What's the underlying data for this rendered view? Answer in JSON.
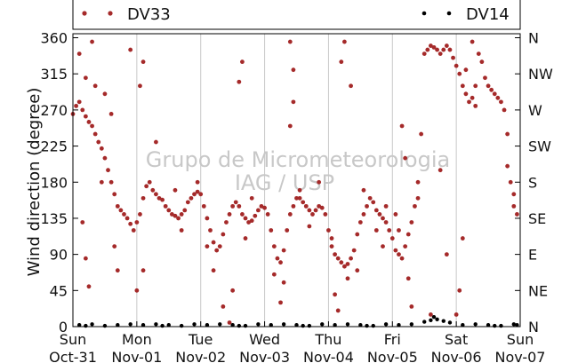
{
  "chart_data": {
    "type": "scatter",
    "ylabel": "Wind direction (degree)",
    "ylim": [
      0,
      365
    ],
    "yticks": [
      0,
      45,
      90,
      135,
      180,
      225,
      270,
      315,
      360
    ],
    "right_ticks": [
      {
        "value": 0,
        "label": "N"
      },
      {
        "value": 45,
        "label": "NE"
      },
      {
        "value": 90,
        "label": "E"
      },
      {
        "value": 135,
        "label": "SE"
      },
      {
        "value": 180,
        "label": "S"
      },
      {
        "value": 225,
        "label": "SW"
      },
      {
        "value": 270,
        "label": "W"
      },
      {
        "value": 315,
        "label": "NW"
      },
      {
        "value": 360,
        "label": "N"
      }
    ],
    "xlim": [
      0,
      7
    ],
    "xticks": [
      {
        "day": "Sun",
        "date": "Oct-31"
      },
      {
        "day": "Mon",
        "date": "Nov-01"
      },
      {
        "day": "Tue",
        "date": "Nov-02"
      },
      {
        "day": "Wed",
        "date": "Nov-03"
      },
      {
        "day": "Thu",
        "date": "Nov-04"
      },
      {
        "day": "Fri",
        "date": "Nov-05"
      },
      {
        "day": "Sat",
        "date": "Nov-06"
      },
      {
        "day": "Sun",
        "date": "Nov-07"
      }
    ],
    "grid": "vertical",
    "legend_placement": "top",
    "watermark": [
      "Grupo de Micrometeorologia",
      "IAG / USP"
    ],
    "series": [
      {
        "name": "DV33",
        "color": "#a52a2a",
        "points": [
          [
            0.0,
            265
          ],
          [
            0.05,
            275
          ],
          [
            0.1,
            280
          ],
          [
            0.15,
            270
          ],
          [
            0.2,
            262
          ],
          [
            0.25,
            255
          ],
          [
            0.3,
            250
          ],
          [
            0.35,
            240
          ],
          [
            0.4,
            230
          ],
          [
            0.45,
            222
          ],
          [
            0.5,
            210
          ],
          [
            0.55,
            195
          ],
          [
            0.6,
            180
          ],
          [
            0.65,
            165
          ],
          [
            0.7,
            150
          ],
          [
            0.75,
            145
          ],
          [
            0.8,
            140
          ],
          [
            0.85,
            135
          ],
          [
            0.9,
            128
          ],
          [
            0.95,
            120
          ],
          [
            1.0,
            130
          ],
          [
            1.05,
            140
          ],
          [
            1.1,
            160
          ],
          [
            1.15,
            175
          ],
          [
            1.2,
            180
          ],
          [
            1.25,
            170
          ],
          [
            1.3,
            165
          ],
          [
            1.35,
            160
          ],
          [
            1.4,
            158
          ],
          [
            1.45,
            150
          ],
          [
            1.5,
            145
          ],
          [
            1.55,
            140
          ],
          [
            1.6,
            138
          ],
          [
            1.65,
            135
          ],
          [
            1.7,
            140
          ],
          [
            1.75,
            145
          ],
          [
            1.8,
            155
          ],
          [
            1.85,
            160
          ],
          [
            1.9,
            165
          ],
          [
            1.95,
            168
          ],
          [
            2.0,
            165
          ],
          [
            2.05,
            150
          ],
          [
            2.1,
            135
          ],
          [
            2.15,
            120
          ],
          [
            2.2,
            105
          ],
          [
            2.25,
            95
          ],
          [
            2.3,
            100
          ],
          [
            2.35,
            115
          ],
          [
            2.4,
            130
          ],
          [
            2.45,
            140
          ],
          [
            2.5,
            150
          ],
          [
            2.55,
            155
          ],
          [
            2.6,
            150
          ],
          [
            2.65,
            140
          ],
          [
            2.7,
            135
          ],
          [
            2.75,
            130
          ],
          [
            2.8,
            132
          ],
          [
            2.85,
            138
          ],
          [
            2.9,
            145
          ],
          [
            2.95,
            150
          ],
          [
            3.0,
            148
          ],
          [
            3.05,
            140
          ],
          [
            3.1,
            120
          ],
          [
            3.15,
            100
          ],
          [
            3.2,
            85
          ],
          [
            3.25,
            80
          ],
          [
            3.3,
            95
          ],
          [
            3.35,
            120
          ],
          [
            3.4,
            140
          ],
          [
            3.45,
            150
          ],
          [
            3.5,
            160
          ],
          [
            3.55,
            160
          ],
          [
            3.6,
            155
          ],
          [
            3.65,
            150
          ],
          [
            3.7,
            145
          ],
          [
            3.75,
            140
          ],
          [
            3.8,
            145
          ],
          [
            3.85,
            150
          ],
          [
            3.9,
            148
          ],
          [
            3.95,
            140
          ],
          [
            4.0,
            120
          ],
          [
            4.05,
            100
          ],
          [
            4.1,
            90
          ],
          [
            4.15,
            85
          ],
          [
            4.2,
            80
          ],
          [
            4.25,
            75
          ],
          [
            4.3,
            78
          ],
          [
            4.35,
            85
          ],
          [
            4.4,
            95
          ],
          [
            4.45,
            115
          ],
          [
            4.5,
            130
          ],
          [
            4.55,
            140
          ],
          [
            4.6,
            150
          ],
          [
            4.65,
            160
          ],
          [
            4.7,
            155
          ],
          [
            4.75,
            145
          ],
          [
            4.8,
            140
          ],
          [
            4.85,
            135
          ],
          [
            4.9,
            130
          ],
          [
            4.95,
            120
          ],
          [
            5.0,
            110
          ],
          [
            5.05,
            95
          ],
          [
            5.1,
            90
          ],
          [
            5.15,
            85
          ],
          [
            5.2,
            100
          ],
          [
            5.25,
            115
          ],
          [
            5.3,
            130
          ],
          [
            5.35,
            150
          ],
          [
            5.4,
            180
          ],
          [
            5.45,
            240
          ],
          [
            5.5,
            340
          ],
          [
            5.55,
            345
          ],
          [
            5.6,
            350
          ],
          [
            5.65,
            348
          ],
          [
            5.7,
            345
          ],
          [
            5.75,
            340
          ],
          [
            5.8,
            345
          ],
          [
            5.85,
            350
          ],
          [
            5.9,
            345
          ],
          [
            5.95,
            335
          ],
          [
            6.0,
            325
          ],
          [
            6.05,
            315
          ],
          [
            6.1,
            300
          ],
          [
            6.15,
            290
          ],
          [
            6.2,
            280
          ],
          [
            6.25,
            285
          ],
          [
            6.3,
            300
          ],
          [
            6.35,
            340
          ],
          [
            6.4,
            330
          ],
          [
            6.45,
            310
          ],
          [
            6.5,
            300
          ],
          [
            6.55,
            295
          ],
          [
            6.6,
            290
          ],
          [
            6.65,
            285
          ],
          [
            6.7,
            280
          ],
          [
            6.75,
            270
          ],
          [
            6.8,
            240
          ],
          [
            6.85,
            180
          ],
          [
            6.9,
            150
          ],
          [
            6.95,
            140
          ],
          [
            0.1,
            340
          ],
          [
            0.2,
            310
          ],
          [
            0.3,
            355
          ],
          [
            0.35,
            300
          ],
          [
            0.6,
            265
          ],
          [
            0.15,
            130
          ],
          [
            0.2,
            85
          ],
          [
            0.25,
            50
          ],
          [
            0.65,
            100
          ],
          [
            0.7,
            70
          ],
          [
            0.9,
            345
          ],
          [
            1.05,
            300
          ],
          [
            1.1,
            330
          ],
          [
            1.3,
            230
          ],
          [
            1.1,
            70
          ],
          [
            1.0,
            45
          ],
          [
            2.6,
            305
          ],
          [
            2.65,
            330
          ],
          [
            2.45,
            5
          ],
          [
            2.5,
            45
          ],
          [
            3.4,
            355
          ],
          [
            3.45,
            320
          ],
          [
            3.4,
            250
          ],
          [
            3.45,
            280
          ],
          [
            3.25,
            30
          ],
          [
            3.3,
            55
          ],
          [
            4.25,
            355
          ],
          [
            4.2,
            330
          ],
          [
            4.35,
            300
          ],
          [
            4.1,
            40
          ],
          [
            4.15,
            20
          ],
          [
            4.3,
            60
          ],
          [
            5.15,
            250
          ],
          [
            5.2,
            210
          ],
          [
            5.1,
            120
          ],
          [
            5.25,
            60
          ],
          [
            5.3,
            25
          ],
          [
            5.6,
            15
          ],
          [
            5.75,
            195
          ],
          [
            5.85,
            90
          ],
          [
            6.0,
            15
          ],
          [
            6.05,
            45
          ],
          [
            6.1,
            110
          ],
          [
            6.3,
            275
          ],
          [
            6.15,
            320
          ],
          [
            6.25,
            355
          ],
          [
            0.5,
            290
          ],
          [
            0.45,
            180
          ],
          [
            1.6,
            170
          ],
          [
            1.7,
            120
          ],
          [
            1.95,
            180
          ],
          [
            2.1,
            100
          ],
          [
            2.2,
            70
          ],
          [
            2.35,
            25
          ],
          [
            2.7,
            110
          ],
          [
            2.8,
            160
          ],
          [
            3.15,
            65
          ],
          [
            3.55,
            170
          ],
          [
            3.7,
            125
          ],
          [
            3.85,
            180
          ],
          [
            4.05,
            110
          ],
          [
            4.45,
            70
          ],
          [
            4.55,
            170
          ],
          [
            4.75,
            120
          ],
          [
            4.85,
            100
          ],
          [
            4.9,
            150
          ],
          [
            5.05,
            140
          ],
          [
            5.4,
            160
          ],
          [
            6.8,
            200
          ],
          [
            6.9,
            165
          ]
        ]
      },
      {
        "name": "DV14",
        "color": "#000000",
        "points": [
          [
            0.1,
            2
          ],
          [
            0.3,
            3
          ],
          [
            0.5,
            1
          ],
          [
            0.7,
            2
          ],
          [
            0.9,
            3
          ],
          [
            1.1,
            2
          ],
          [
            1.3,
            3
          ],
          [
            1.5,
            2
          ],
          [
            1.7,
            1
          ],
          [
            1.9,
            3
          ],
          [
            2.1,
            2
          ],
          [
            2.3,
            3
          ],
          [
            2.5,
            2
          ],
          [
            2.7,
            1
          ],
          [
            2.9,
            3
          ],
          [
            3.1,
            2
          ],
          [
            3.3,
            3
          ],
          [
            3.5,
            2
          ],
          [
            3.7,
            1
          ],
          [
            3.9,
            3
          ],
          [
            4.1,
            2
          ],
          [
            4.3,
            3
          ],
          [
            4.5,
            2
          ],
          [
            4.7,
            1
          ],
          [
            4.9,
            3
          ],
          [
            5.1,
            2
          ],
          [
            5.3,
            3
          ],
          [
            5.5,
            6
          ],
          [
            5.6,
            8
          ],
          [
            5.7,
            9
          ],
          [
            5.8,
            7
          ],
          [
            5.9,
            5
          ],
          [
            6.1,
            2
          ],
          [
            6.3,
            3
          ],
          [
            6.5,
            2
          ],
          [
            6.7,
            1
          ],
          [
            6.9,
            3
          ],
          [
            0.2,
            1
          ],
          [
            1.4,
            1
          ],
          [
            2.6,
            1
          ],
          [
            3.6,
            1
          ],
          [
            4.6,
            1
          ],
          [
            5.65,
            12
          ],
          [
            6.6,
            1
          ],
          [
            6.95,
            2
          ]
        ]
      }
    ]
  }
}
